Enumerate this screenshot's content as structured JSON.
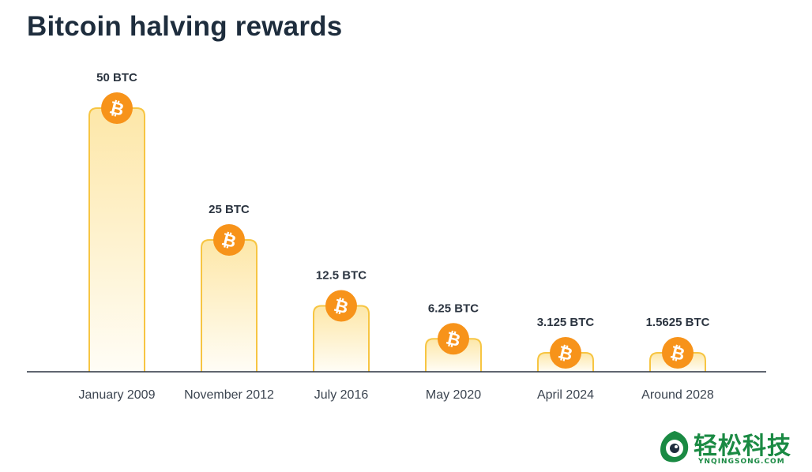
{
  "title": "Bitcoin halving rewards",
  "chart_data": {
    "type": "bar",
    "title": "Bitcoin halving rewards",
    "xlabel": "",
    "ylabel": "",
    "categories": [
      "January 2009",
      "November 2012",
      "July 2016",
      "May 2020",
      "April 2024",
      "Around 2028"
    ],
    "values": [
      50,
      25,
      12.5,
      6.25,
      3.125,
      1.5625
    ],
    "value_labels": [
      "50 BTC",
      "25 BTC",
      "12.5 BTC",
      "6.25 BTC",
      "3.125 BTC",
      "1.5625 BTC"
    ],
    "unit": "BTC",
    "grid": false,
    "legend": "none"
  },
  "colors": {
    "bar_fill_top": "#fde7a8",
    "bar_fill_bottom": "#fffdf6",
    "bar_stroke": "#f7c542",
    "coin": "#f7931a",
    "axis": "#2b3440",
    "title": "#1e2d3d",
    "watermark": "#1a8a43"
  },
  "watermark": {
    "text": "轻松科技",
    "subtext": "YNQINGSONG.COM"
  }
}
